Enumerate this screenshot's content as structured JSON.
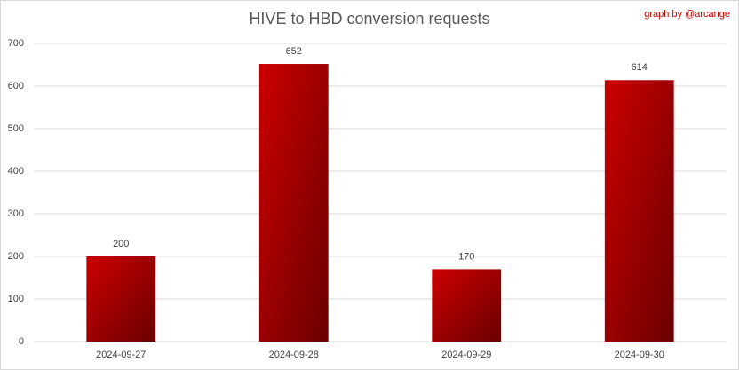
{
  "chart_data": {
    "type": "bar",
    "title": "HIVE to HBD conversion requests",
    "annotation": "graph by @arcange",
    "categories": [
      "2024-09-27",
      "2024-09-28",
      "2024-09-29",
      "2024-09-30"
    ],
    "values": [
      200,
      652,
      170,
      614
    ],
    "color": "#cc0000",
    "ylim": [
      0,
      700
    ],
    "yticks": [
      0,
      100,
      200,
      300,
      400,
      500,
      600,
      700
    ],
    "grid": true
  }
}
